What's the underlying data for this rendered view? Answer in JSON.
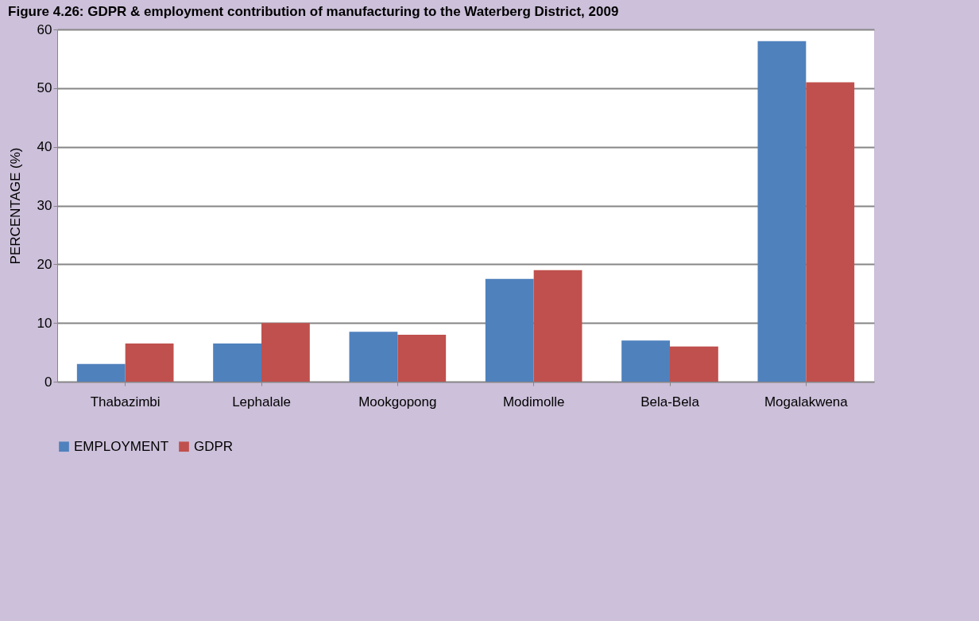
{
  "chart_data": {
    "type": "bar",
    "title": "Figure 4.26: GDPR & employment contribution of manufacturing to the Waterberg District, 2009",
    "ylabel": "PERCENTAGE (%)",
    "categories": [
      "Thabazimbi",
      "Lephalale",
      "Mookgopong",
      "Modimolle",
      "Bela-Bela",
      "Mogalakwena"
    ],
    "series": [
      {
        "name": "EMPLOYMENT",
        "color": "#4f81bd",
        "values": [
          3,
          6.5,
          8.5,
          17.5,
          7,
          58
        ]
      },
      {
        "name": "GDPR",
        "color": "#c0504d",
        "values": [
          6.5,
          10,
          8,
          19,
          6,
          51
        ]
      }
    ],
    "ylim": [
      0,
      60
    ],
    "yticks": [
      0,
      10,
      20,
      30,
      40,
      50,
      60
    ],
    "grid": "y",
    "legend": "bottom"
  }
}
